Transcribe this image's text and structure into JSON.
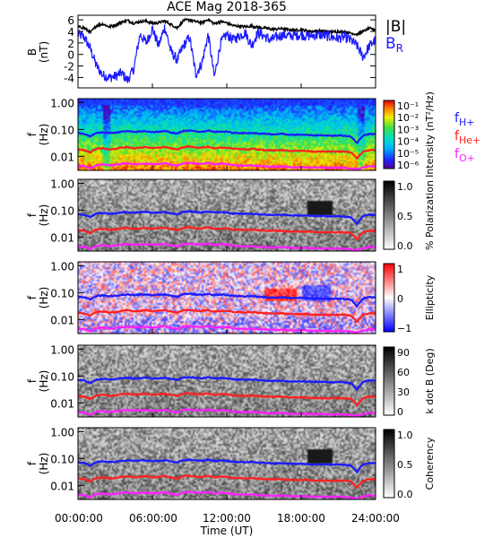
{
  "title": "ACE Mag 2018-365",
  "xaxis": {
    "label": "Time (UT)",
    "ticks": [
      "00:00:00",
      "06:00:00",
      "12:00:00",
      "18:00:00",
      "24:00:00"
    ],
    "range_hours": [
      0,
      24
    ]
  },
  "colors": {
    "B": "#000000",
    "BR": "#1a1aff",
    "fH": "#1a1aff",
    "fHe": "#ff2020",
    "fO": "#ff20ff"
  },
  "chart_data": [
    {
      "type": "line",
      "ylabel": "B",
      "yunit": "(nT)",
      "ylim": [
        -5.8,
        6.8
      ],
      "yticks": [
        "6",
        "4",
        "2",
        "0",
        "-2",
        "-4"
      ],
      "ytick_values": [
        6,
        4,
        2,
        0,
        -2,
        -4
      ],
      "legend": [
        "|B|",
        "B",
        "R"
      ],
      "x": [
        0,
        0.5,
        1,
        1.5,
        2,
        2.5,
        3,
        3.5,
        4,
        4.5,
        5,
        5.5,
        6,
        6.5,
        7,
        7.5,
        8,
        8.5,
        9,
        9.5,
        10,
        10.5,
        11,
        11.5,
        12,
        12.5,
        13,
        13.5,
        14,
        14.5,
        15,
        15.5,
        16,
        16.5,
        17,
        17.5,
        18,
        18.5,
        19,
        19.5,
        20,
        20.5,
        21,
        21.5,
        22,
        22.5,
        23,
        23.5,
        24
      ],
      "series": [
        {
          "name": "|B|",
          "values": [
            4.8,
            4.6,
            3.8,
            5.0,
            5.3,
            4.8,
            5.1,
            5.6,
            5.9,
            5.4,
            5.7,
            5.8,
            5.4,
            5.5,
            5.8,
            5.2,
            4.6,
            5.9,
            6.0,
            5.7,
            5.5,
            6.1,
            5.3,
            5.7,
            5.5,
            5.0,
            4.9,
            4.8,
            4.9,
            4.7,
            4.6,
            4.4,
            4.4,
            4.5,
            4.3,
            4.2,
            4.3,
            4.1,
            4.0,
            4.1,
            4.0,
            3.9,
            4.0,
            3.9,
            3.7,
            3.5,
            4.0,
            4.5,
            4.3
          ]
        },
        {
          "name": "B R",
          "values": [
            3.5,
            3.0,
            1.0,
            -2.0,
            -3.6,
            -4.0,
            -3.8,
            -3.2,
            -4.5,
            -2.5,
            3.5,
            2.0,
            4.5,
            1.5,
            4.8,
            0.5,
            -1.0,
            1.5,
            3.0,
            -3.5,
            -1.5,
            3.5,
            -4.0,
            2.0,
            3.5,
            2.5,
            3.2,
            3.8,
            1.5,
            3.8,
            3.2,
            2.5,
            3.0,
            3.4,
            3.2,
            3.3,
            3.4,
            3.2,
            3.3,
            3.4,
            3.2,
            3.0,
            2.8,
            3.0,
            2.5,
            1.5,
            -0.5,
            1.5,
            2.5
          ]
        }
      ]
    },
    {
      "type": "heatmap",
      "ylabel": "f",
      "yunit": "(Hz)",
      "yticks": [
        "1.00",
        "0.10",
        "0.01"
      ],
      "ytick_values": [
        1.0,
        0.1,
        0.01
      ],
      "ylim": [
        0.003,
        1.4
      ],
      "colorbar_label": "Intensity (nT²/Hz)",
      "colorbar_ticks": [
        "10⁻¹",
        "10⁻²",
        "10⁻³",
        "10⁻⁴",
        "10⁻⁵",
        "10⁻⁶"
      ],
      "legend": [
        "f H+",
        "f He+",
        "f O+"
      ]
    },
    {
      "type": "heatmap",
      "ylabel": "f",
      "yunit": "(Hz)",
      "yticks": [
        "1.00",
        "0.10",
        "0.01"
      ],
      "ytick_values": [
        1.0,
        0.1,
        0.01
      ],
      "ylim": [
        0.003,
        1.4
      ],
      "colorbar_label": "% Polarization",
      "colorbar_ticks": [
        "1.0",
        "0.5",
        "0.0"
      ]
    },
    {
      "type": "heatmap",
      "ylabel": "f",
      "yunit": "(Hz)",
      "yticks": [
        "1.00",
        "0.10",
        "0.01"
      ],
      "ytick_values": [
        1.0,
        0.1,
        0.01
      ],
      "ylim": [
        0.003,
        1.4
      ],
      "colorbar_label": "Ellipticity",
      "colorbar_ticks": [
        "1",
        "0",
        "−1"
      ]
    },
    {
      "type": "heatmap",
      "ylabel": "f",
      "yunit": "(Hz)",
      "yticks": [
        "1.00",
        "0.10",
        "0.01"
      ],
      "ytick_values": [
        1.0,
        0.1,
        0.01
      ],
      "ylim": [
        0.003,
        1.4
      ],
      "colorbar_label": "k dot B (Deg)",
      "colorbar_ticks": [
        "90",
        "60",
        "30",
        "0"
      ]
    },
    {
      "type": "heatmap",
      "ylabel": "f",
      "yunit": "(Hz)",
      "yticks": [
        "1.00",
        "0.10",
        "0.01"
      ],
      "ytick_values": [
        1.0,
        0.1,
        0.01
      ],
      "ylim": [
        0.003,
        1.4
      ],
      "colorbar_label": "Coherency",
      "colorbar_ticks": [
        "1.0",
        "0.5",
        "0.0"
      ]
    }
  ],
  "gyrofrequency_lines": {
    "x": [
      0,
      0.5,
      1,
      1.5,
      2,
      2.5,
      3,
      3.5,
      4,
      4.5,
      5,
      5.5,
      6,
      6.5,
      7,
      7.5,
      8,
      8.5,
      9,
      9.5,
      10,
      10.5,
      11,
      11.5,
      12,
      12.5,
      13,
      13.5,
      14,
      14.5,
      15,
      15.5,
      16,
      16.5,
      17,
      17.5,
      18,
      18.5,
      19,
      19.5,
      20,
      20.5,
      21,
      21.5,
      22,
      22.5,
      23,
      23.5,
      24
    ],
    "fH": [
      0.072,
      0.068,
      0.055,
      0.075,
      0.078,
      0.074,
      0.076,
      0.082,
      0.086,
      0.08,
      0.084,
      0.086,
      0.08,
      0.082,
      0.086,
      0.078,
      0.07,
      0.088,
      0.09,
      0.085,
      0.082,
      0.091,
      0.08,
      0.085,
      0.082,
      0.075,
      0.074,
      0.072,
      0.074,
      0.07,
      0.069,
      0.066,
      0.066,
      0.068,
      0.064,
      0.063,
      0.064,
      0.062,
      0.06,
      0.061,
      0.06,
      0.058,
      0.06,
      0.058,
      0.055,
      0.03,
      0.06,
      0.068,
      0.066
    ],
    "fHe": [
      0.018,
      0.017,
      0.014,
      0.019,
      0.02,
      0.018,
      0.019,
      0.021,
      0.022,
      0.02,
      0.021,
      0.022,
      0.02,
      0.021,
      0.022,
      0.02,
      0.018,
      0.022,
      0.023,
      0.021,
      0.021,
      0.023,
      0.02,
      0.021,
      0.021,
      0.019,
      0.019,
      0.018,
      0.019,
      0.018,
      0.017,
      0.017,
      0.017,
      0.017,
      0.016,
      0.016,
      0.016,
      0.016,
      0.015,
      0.015,
      0.015,
      0.015,
      0.015,
      0.015,
      0.014,
      0.008,
      0.015,
      0.017,
      0.017
    ],
    "fO": [
      0.0045,
      0.0043,
      0.0036,
      0.0047,
      0.005,
      0.0046,
      0.0048,
      0.0052,
      0.0055,
      0.0051,
      0.0053,
      0.0054,
      0.0051,
      0.0052,
      0.0055,
      0.0049,
      0.0044,
      0.0055,
      0.0057,
      0.0054,
      0.0052,
      0.0057,
      0.005,
      0.0054,
      0.0052,
      0.0047,
      0.0046,
      0.0045,
      0.0046,
      0.0044,
      0.0043,
      0.0041,
      0.0041,
      0.0042,
      0.004,
      0.0039,
      0.004,
      0.0039,
      0.0038,
      0.0038,
      0.0038,
      0.0037,
      0.0038,
      0.0037,
      0.0035,
      0.0033,
      0.0038,
      0.0043,
      0.0041
    ]
  }
}
